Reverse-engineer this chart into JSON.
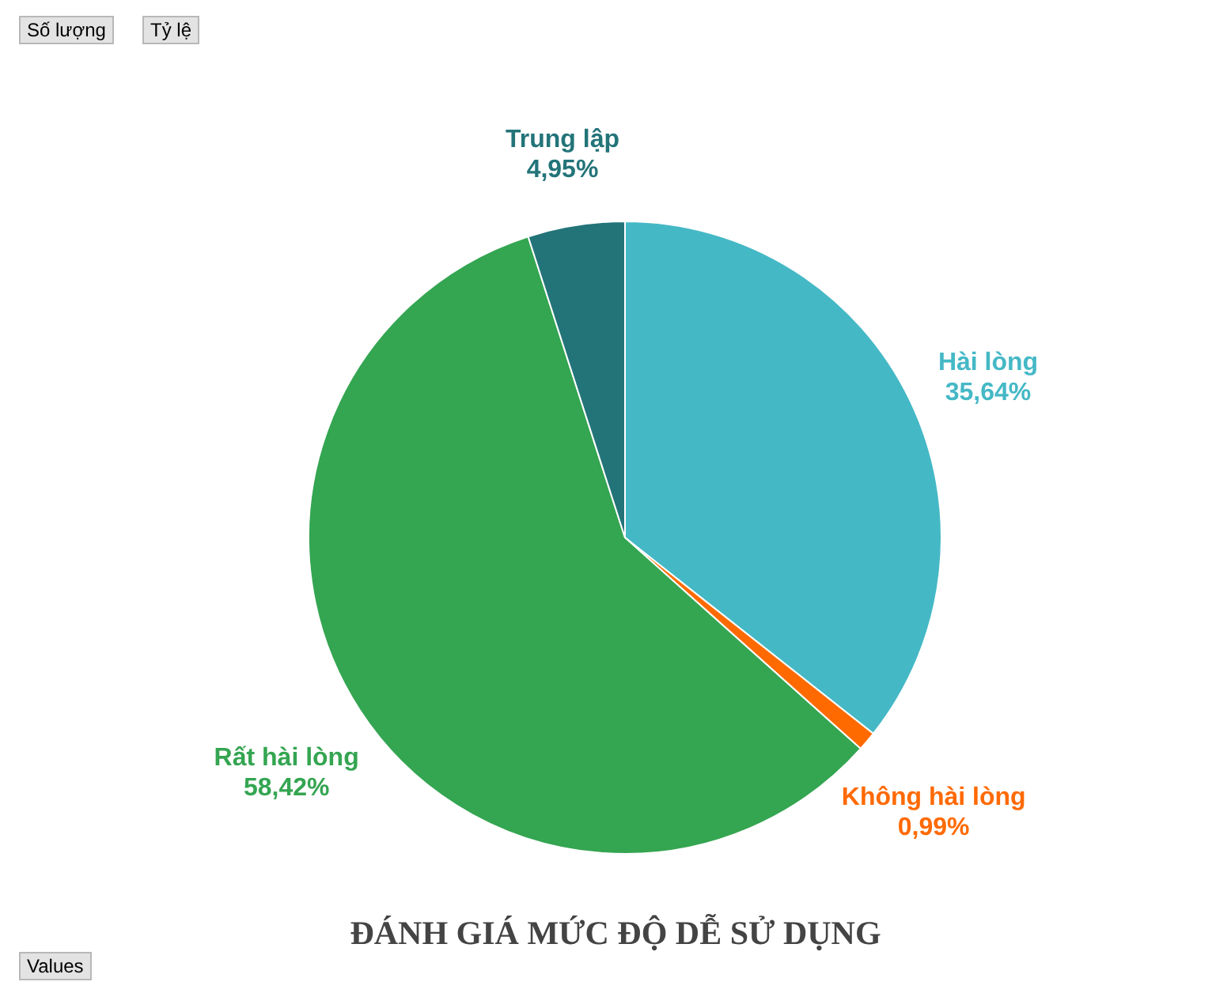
{
  "chart_data": {
    "type": "pie",
    "title": "ĐÁNH GIÁ MỨC ĐỘ DỄ SỬ DỤNG",
    "categories": [
      "Hài lòng",
      "Không hài lòng",
      "Rất hài lòng",
      "Trung lập"
    ],
    "values": [
      35.64,
      0.99,
      58.42,
      4.95
    ],
    "colors": [
      "#45b8c6",
      "#ff6a00",
      "#34a551",
      "#237479"
    ],
    "value_labels": [
      "35,64%",
      "0,99%",
      "58,42%",
      "4,95%"
    ],
    "annotations": [
      "Số lượng",
      "Tỷ lệ",
      "Values"
    ]
  }
}
